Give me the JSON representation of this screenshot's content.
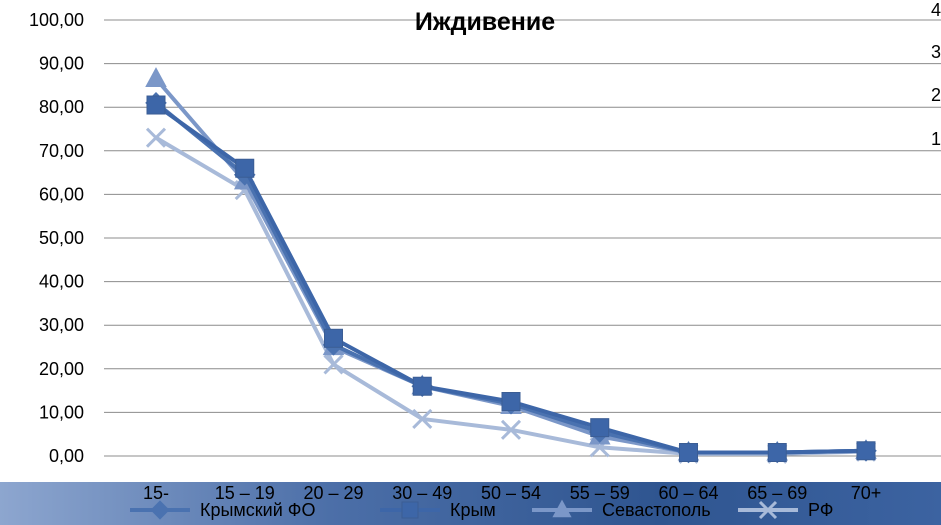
{
  "chart_data": {
    "type": "line",
    "title": "Иждивение",
    "xlabel": "",
    "ylabel": "",
    "ylim": [
      0,
      100
    ],
    "y_ticks": [
      "0,00",
      "10,00",
      "20,00",
      "30,00",
      "40,00",
      "50,00",
      "60,00",
      "70,00",
      "80,00",
      "90,00",
      "100,00"
    ],
    "categories": [
      "15-",
      "15 – 19",
      "20 – 29",
      "30 – 49",
      "50 – 54",
      "55 – 59",
      "60 – 64",
      "65 – 69",
      "70+"
    ],
    "grid": true,
    "legend_position": "bottom",
    "series": [
      {
        "name": "Крымский ФО",
        "marker": "diamond",
        "color": "#4a72b0",
        "values": [
          81.0,
          64.5,
          25.5,
          16.0,
          12.0,
          5.5,
          0.8,
          0.8,
          1.2
        ]
      },
      {
        "name": "Крым",
        "marker": "square",
        "color": "#3d66a8",
        "values": [
          80.5,
          66.0,
          27.0,
          16.0,
          12.5,
          6.5,
          0.8,
          0.8,
          1.2
        ]
      },
      {
        "name": "Севастополь",
        "marker": "triangle",
        "color": "#7b97c8",
        "values": [
          86.5,
          63.0,
          25.0,
          16.0,
          11.5,
          4.5,
          0.8,
          0.8,
          1.2
        ]
      },
      {
        "name": "РФ",
        "marker": "x",
        "color": "#a8bad9",
        "values": [
          73.0,
          61.0,
          21.0,
          8.5,
          6.0,
          2.0,
          0.5,
          0.5,
          1.0
        ]
      }
    ],
    "side_fragment_labels": [
      "4",
      "3",
      "2",
      "1"
    ]
  }
}
